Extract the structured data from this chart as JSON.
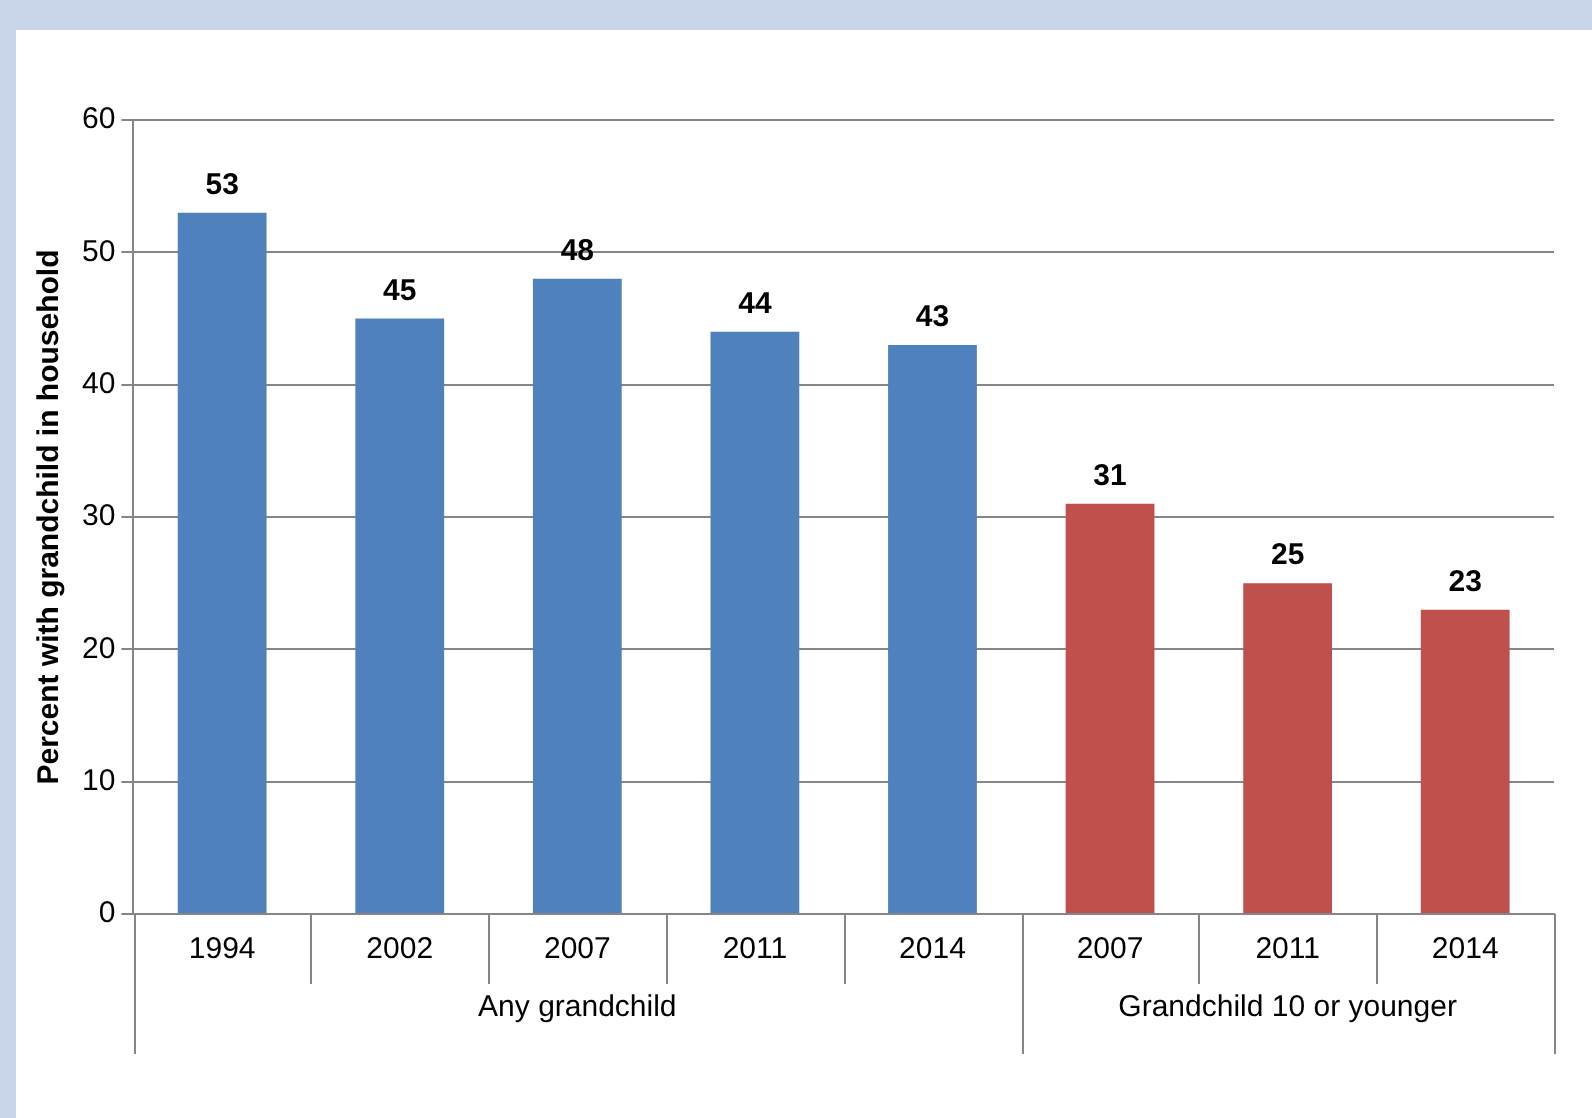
{
  "chart_data": {
    "type": "bar",
    "ylabel": "Percent with grandchild in household",
    "categories": [
      "1994",
      "2002",
      "2007",
      "2011",
      "2014",
      "2007",
      "2011",
      "2014"
    ],
    "series": [
      {
        "name": "Any grandchild",
        "color": "#4f81bd",
        "values": [
          53,
          45,
          48,
          44,
          43,
          null,
          null,
          null
        ]
      },
      {
        "name": "Grandchild 10 or younger",
        "color": "#c0504d",
        "values": [
          null,
          null,
          null,
          null,
          null,
          31,
          25,
          23
        ]
      }
    ],
    "ylim": [
      0,
      60
    ],
    "yticks": [
      0,
      10,
      20,
      30,
      40,
      50,
      60
    ],
    "grid": "y",
    "legend": false,
    "data_labels": true
  }
}
